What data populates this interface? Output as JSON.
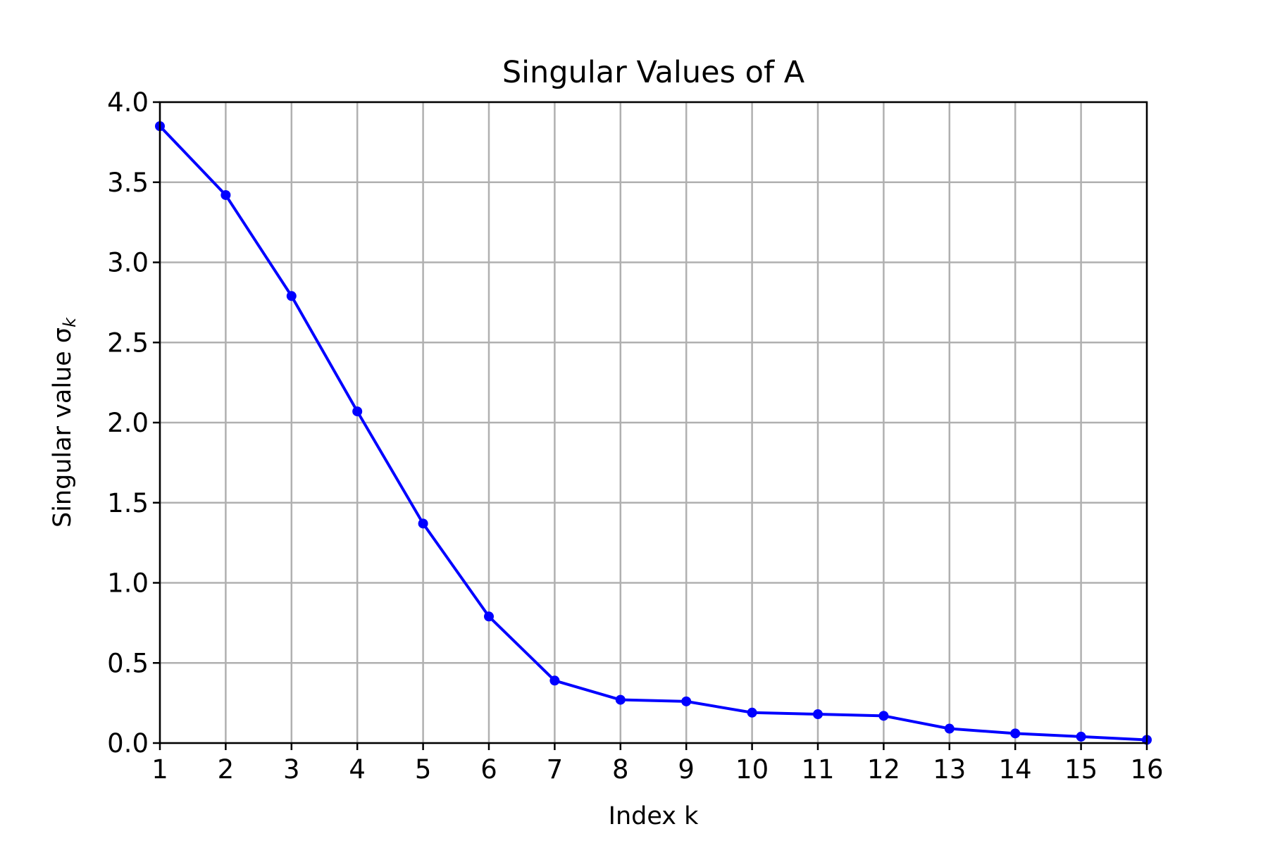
{
  "chart_data": {
    "type": "line",
    "title": "Singular Values of A",
    "xlabel": "Index k",
    "ylabel": "Singular value σ",
    "ylabel_subscript": "k",
    "xlim": [
      1,
      16
    ],
    "ylim": [
      0,
      4.0
    ],
    "grid": true,
    "x_ticks": [
      "1",
      "2",
      "3",
      "4",
      "5",
      "6",
      "7",
      "8",
      "9",
      "10",
      "11",
      "12",
      "13",
      "14",
      "15",
      "16"
    ],
    "y_ticks": [
      "0.0",
      "0.5",
      "1.0",
      "1.5",
      "2.0",
      "2.5",
      "3.0",
      "3.5",
      "4.0"
    ],
    "series": [
      {
        "x": [
          1,
          2,
          3,
          4,
          5,
          6,
          7,
          8,
          9,
          10,
          11,
          12,
          13,
          14,
          15,
          16
        ],
        "values": [
          3.85,
          3.42,
          2.79,
          2.07,
          1.37,
          0.79,
          0.39,
          0.27,
          0.26,
          0.19,
          0.18,
          0.17,
          0.09,
          0.06,
          0.04,
          0.02
        ],
        "color": "#0000ff",
        "marker": "circle"
      }
    ],
    "grid_color": "#b0b0b0"
  }
}
